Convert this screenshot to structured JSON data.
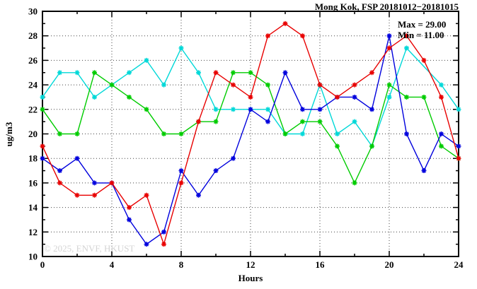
{
  "header": {
    "title": "Mong Kok, FSP 20181012−20181015",
    "max_label": "Max = 29.00",
    "min_label": "Min = 11.00"
  },
  "watermark": "© 2025, ENVF, HKUST",
  "chart_data": {
    "type": "line",
    "title": "Mong Kok, FSP 20181012−20181015",
    "xlabel": "Hours",
    "ylabel": "ug/m3",
    "xlim": [
      0,
      24
    ],
    "ylim": [
      10,
      30
    ],
    "x": [
      0,
      1,
      2,
      3,
      4,
      5,
      6,
      7,
      8,
      9,
      10,
      11,
      12,
      13,
      14,
      15,
      16,
      17,
      18,
      19,
      20,
      21,
      22,
      23,
      24
    ],
    "xticks_labeled": [
      0,
      4,
      8,
      12,
      16,
      20,
      24
    ],
    "xtick_minor_step": 2,
    "yticks_labeled": [
      10,
      12,
      14,
      16,
      18,
      20,
      22,
      24,
      26,
      28,
      30
    ],
    "ytick_minor_step": 1,
    "grid_x": [
      4,
      8,
      12,
      16,
      20
    ],
    "grid_y": [
      12,
      14,
      16,
      18,
      20,
      22,
      24,
      26,
      28
    ],
    "grid": "dotted",
    "legend_position": "none",
    "stat_max": 29.0,
    "stat_min": 11.0,
    "series": [
      {
        "name": "cyan",
        "color": "#00d8d8",
        "values": [
          23,
          25,
          25,
          23,
          24,
          25,
          26,
          24,
          27,
          25,
          22,
          22,
          22,
          22,
          20,
          20,
          24,
          20,
          21,
          19,
          23,
          27,
          null,
          24,
          22
        ]
      },
      {
        "name": "green",
        "color": "#00cc00",
        "values": [
          22,
          20,
          20,
          25,
          24,
          23,
          22,
          20,
          20,
          21,
          21,
          25,
          25,
          24,
          20,
          21,
          21,
          19,
          16,
          19,
          24,
          23,
          23,
          19,
          18
        ]
      },
      {
        "name": "blue",
        "color": "#0000dd",
        "values": [
          18,
          17,
          18,
          16,
          16,
          13,
          11,
          12,
          17,
          15,
          17,
          18,
          22,
          21,
          25,
          22,
          22,
          23,
          23,
          22,
          28,
          20,
          17,
          20,
          19
        ]
      },
      {
        "name": "red",
        "color": "#e80000",
        "values": [
          19,
          16,
          15,
          15,
          16,
          14,
          15,
          11,
          16,
          21,
          25,
          24,
          23,
          28,
          29,
          28,
          24,
          23,
          24,
          25,
          27,
          28,
          26,
          23,
          18
        ]
      }
    ]
  }
}
